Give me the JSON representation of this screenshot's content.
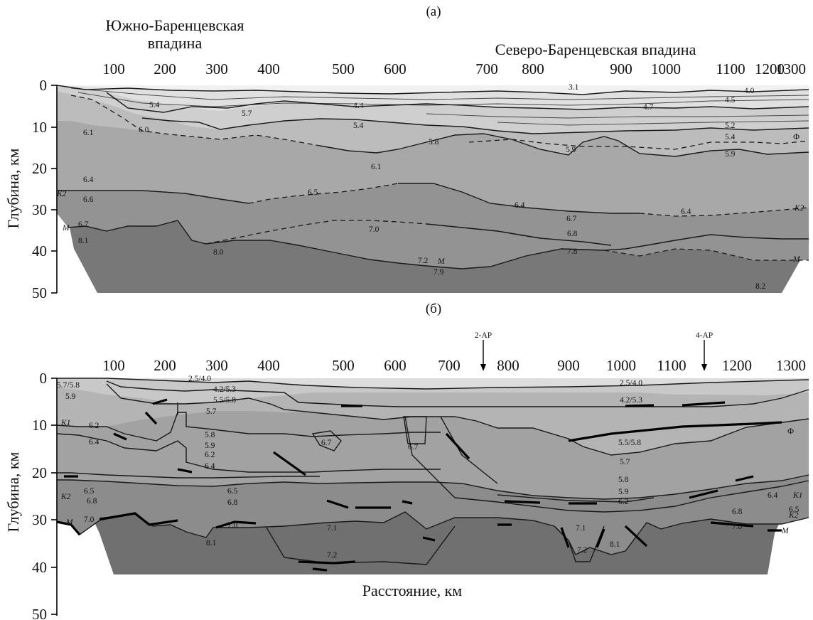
{
  "panel_a": {
    "letter": "(a)",
    "header_left": [
      "Южно-Баренцевская",
      "впадина"
    ],
    "header_right": "Северо-Баренцевская впадина",
    "x_ticks": [
      "100",
      "200",
      "300",
      "400",
      "500",
      "600",
      "700",
      "800",
      "900",
      "1000",
      "1100",
      "1200",
      "1300"
    ],
    "y_ticks": [
      "0",
      "10",
      "20",
      "30",
      "40",
      "50"
    ],
    "ylabel": "Глубина, км",
    "velocity_labels": [
      "3.1",
      "4.0",
      "5.4",
      "5.7",
      "4.4",
      "4.7",
      "4.5",
      "6.1",
      "6.0",
      "5.4",
      "5.2",
      "5.4",
      "5.8",
      "5.9",
      "5.9",
      "6.1",
      "6.4",
      "6.6",
      "6.5",
      "6.4",
      "6.7",
      "6.4",
      "6.7",
      "7.0",
      "6.8",
      "8.1",
      "8.0",
      "7.2",
      "7.9",
      "7.8",
      "8.2"
    ],
    "boundary_labels": [
      "K2",
      "M",
      "Ф",
      "K2",
      "M",
      "M"
    ]
  },
  "panel_b": {
    "letter": "(б)",
    "x_ticks": [
      "100",
      "200",
      "300",
      "400",
      "500",
      "600",
      "700",
      "800",
      "900",
      "1000",
      "1100",
      "1200",
      "1300"
    ],
    "y_ticks": [
      "0",
      "10",
      "20",
      "30",
      "40",
      "50"
    ],
    "ylabel": "Глубина, км",
    "xlabel": "Расстояние, км",
    "markers": [
      "2-AP",
      "4-AP"
    ],
    "velocity_labels": [
      "5.7/5.8",
      "5.9",
      "2.5/4.0",
      "4.2/5.3",
      "5.5/5.8",
      "5.7",
      "2.5/4.0",
      "4.2/5.3",
      "6.2",
      "6.4",
      "5.8",
      "5.9",
      "6.2",
      "6.4",
      "6.7",
      "6.7",
      "5.5/5.8",
      "5.7",
      "5.8",
      "6.5",
      "6.8",
      "6.5",
      "6.8",
      "5.9",
      "6.2",
      "6.4",
      "6.5",
      "6.8",
      "7.0",
      "7.0",
      "7.1",
      "7.1",
      "8.1",
      "7.2",
      "7.2",
      "8.1",
      "7.0"
    ],
    "boundary_labels": [
      "K1",
      "K2",
      "M",
      "Ф",
      "K1",
      "K2",
      "M"
    ]
  }
}
